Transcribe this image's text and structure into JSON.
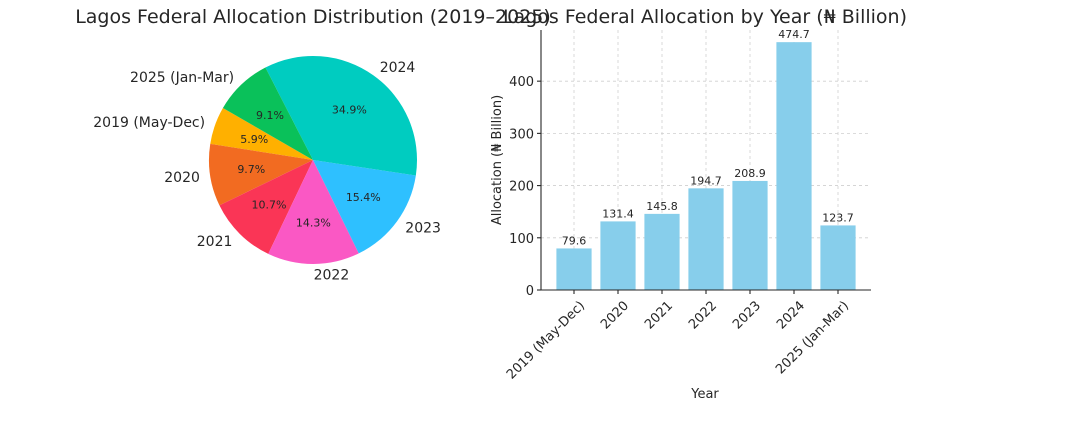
{
  "chart_data": [
    {
      "type": "pie",
      "title": "Lagos Federal Allocation Distribution (2019–2025)",
      "labels": [
        "2019 (May-Dec)",
        "2020",
        "2021",
        "2022",
        "2023",
        "2024",
        "2025 (Jan-Mar)"
      ],
      "values": [
        79.6,
        131.4,
        145.8,
        194.7,
        208.9,
        474.7,
        123.7
      ],
      "percent_labels": [
        "5.9%",
        "9.7%",
        "10.7%",
        "14.3%",
        "15.4%",
        "34.9%",
        "9.1%"
      ],
      "colors": [
        "#FFB000",
        "#F26B21",
        "#FA3556",
        "#FA58C4",
        "#2EC0FF",
        "#00CCC0",
        "#0AC15A"
      ],
      "start_angle_deg": 150,
      "direction": "counterclockwise"
    },
    {
      "type": "bar",
      "title": "Lagos Federal Allocation by Year (₦ Billion)",
      "categories": [
        "2019 (May-Dec)",
        "2020",
        "2021",
        "2022",
        "2023",
        "2024",
        "2025 (Jan-Mar)"
      ],
      "values": [
        79.6,
        131.4,
        145.8,
        194.7,
        208.9,
        474.7,
        123.7
      ],
      "value_labels": [
        "79.6",
        "131.4",
        "145.8",
        "194.7",
        "208.9",
        "474.7",
        "123.7"
      ],
      "xlabel": "Year",
      "ylabel": "Allocation (₦ Billion)",
      "ylim": [
        0,
        498
      ],
      "yticks": [
        0,
        100,
        200,
        300,
        400
      ],
      "grid": true,
      "bar_color": "#87CEEB",
      "xtick_rotation_deg": 45
    }
  ]
}
